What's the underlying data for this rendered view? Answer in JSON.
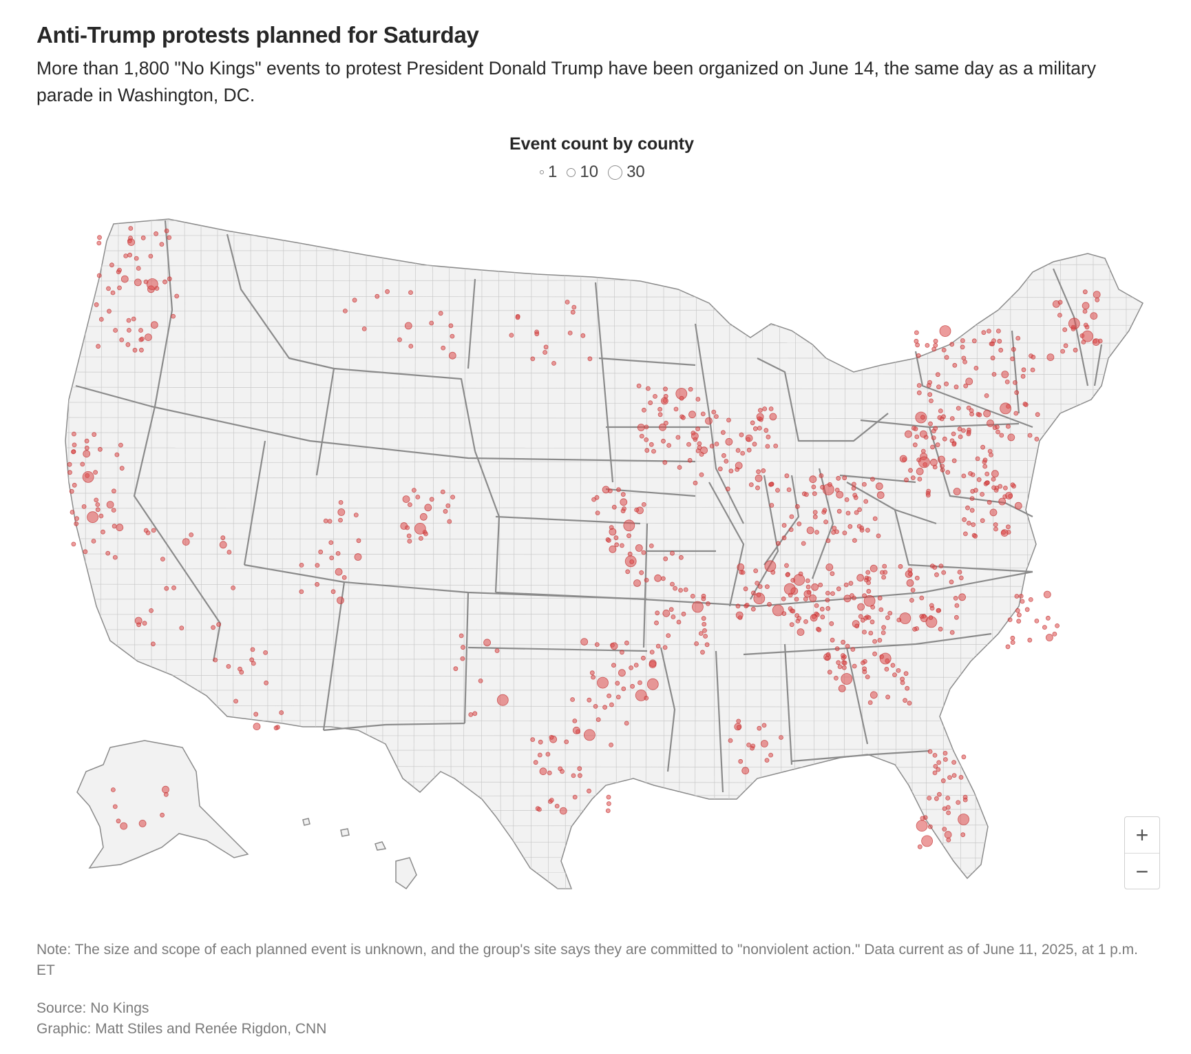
{
  "title": "Anti-Trump protests planned for Saturday",
  "subtitle": "More than 1,800 \"No Kings\" events to protest President Donald Trump have been organized on June 14, the same day as a military parade in Washington, DC.",
  "legend": {
    "title": "Event count by county",
    "items": [
      {
        "label": "1"
      },
      {
        "label": "10"
      },
      {
        "label": "30"
      }
    ]
  },
  "zoom": {
    "in_label": "+",
    "out_label": "−"
  },
  "note": "Note: The size and scope of each planned event is unknown, and the group's site says they are committed to \"nonviolent action.\" Data current as of June 11, 2025, at 1 p.m. ET",
  "source": "Source: No Kings",
  "credit": "Graphic: Matt Stiles and Renée Rigdon, CNN",
  "colors": {
    "land": "#f2f2f2",
    "county_border": "#c8c8c8",
    "state_border": "#8a8a8a",
    "dot_fill": "#dc4b4b",
    "dot_stroke": "#c23a3a"
  }
}
